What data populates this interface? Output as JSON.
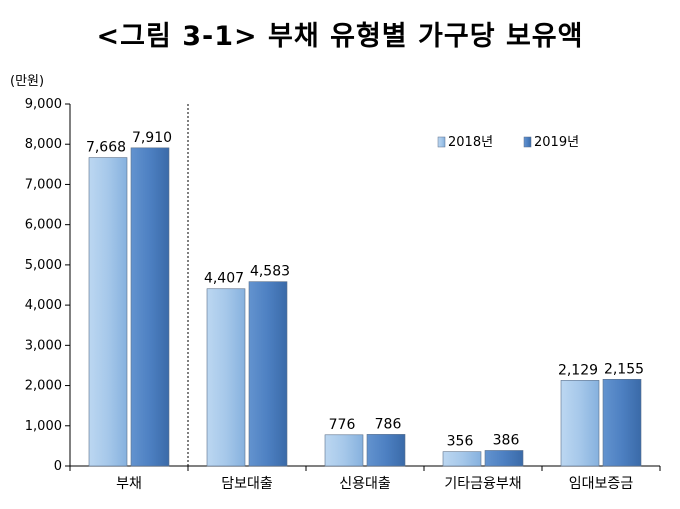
{
  "chart_data": {
    "type": "bar",
    "title": "<그림 3-1> 부채 유형별 가구당 보유액",
    "unit": "(만원)",
    "categories": [
      "부채",
      "담보대출",
      "신용대출",
      "기타금융부채",
      "임대보증금"
    ],
    "series": [
      {
        "name": "2018년",
        "values": [
          7668,
          4407,
          776,
          356,
          2129
        ],
        "labels": [
          "7,668",
          "4,407",
          "776",
          "356",
          "2,129"
        ],
        "color": "#9dc3e6"
      },
      {
        "name": "2019년",
        "values": [
          7910,
          4583,
          786,
          386,
          2155
        ],
        "labels": [
          "7,910",
          "4,583",
          "786",
          "386",
          "2,155"
        ],
        "color": "#4a7ebf"
      }
    ],
    "yticks": [
      "0",
      "1,000",
      "2,000",
      "3,000",
      "4,000",
      "5,000",
      "6,000",
      "7,000",
      "8,000",
      "9,000"
    ],
    "ylim": [
      0,
      9000
    ],
    "legend_position": "top-right",
    "grid": false
  }
}
